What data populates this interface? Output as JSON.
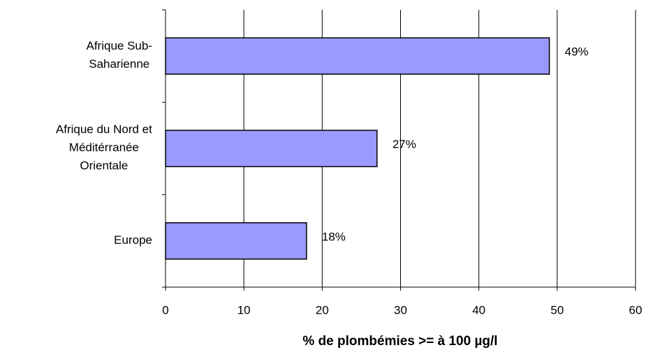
{
  "chart_data": {
    "type": "bar",
    "orientation": "horizontal",
    "categories": [
      "Afrique Sub-Saharienne",
      "Afrique du Nord et Méditérranée Orientale",
      "Europe"
    ],
    "values": [
      49,
      27,
      18
    ],
    "value_labels": [
      "49%",
      "27%",
      "18%"
    ],
    "color": "#9999ff",
    "xlabel": "% de plombémies >= à 100 µg/l",
    "xlim": [
      0,
      60
    ],
    "xticks": [
      0,
      10,
      20,
      30,
      40,
      50,
      60
    ],
    "grid": true
  }
}
